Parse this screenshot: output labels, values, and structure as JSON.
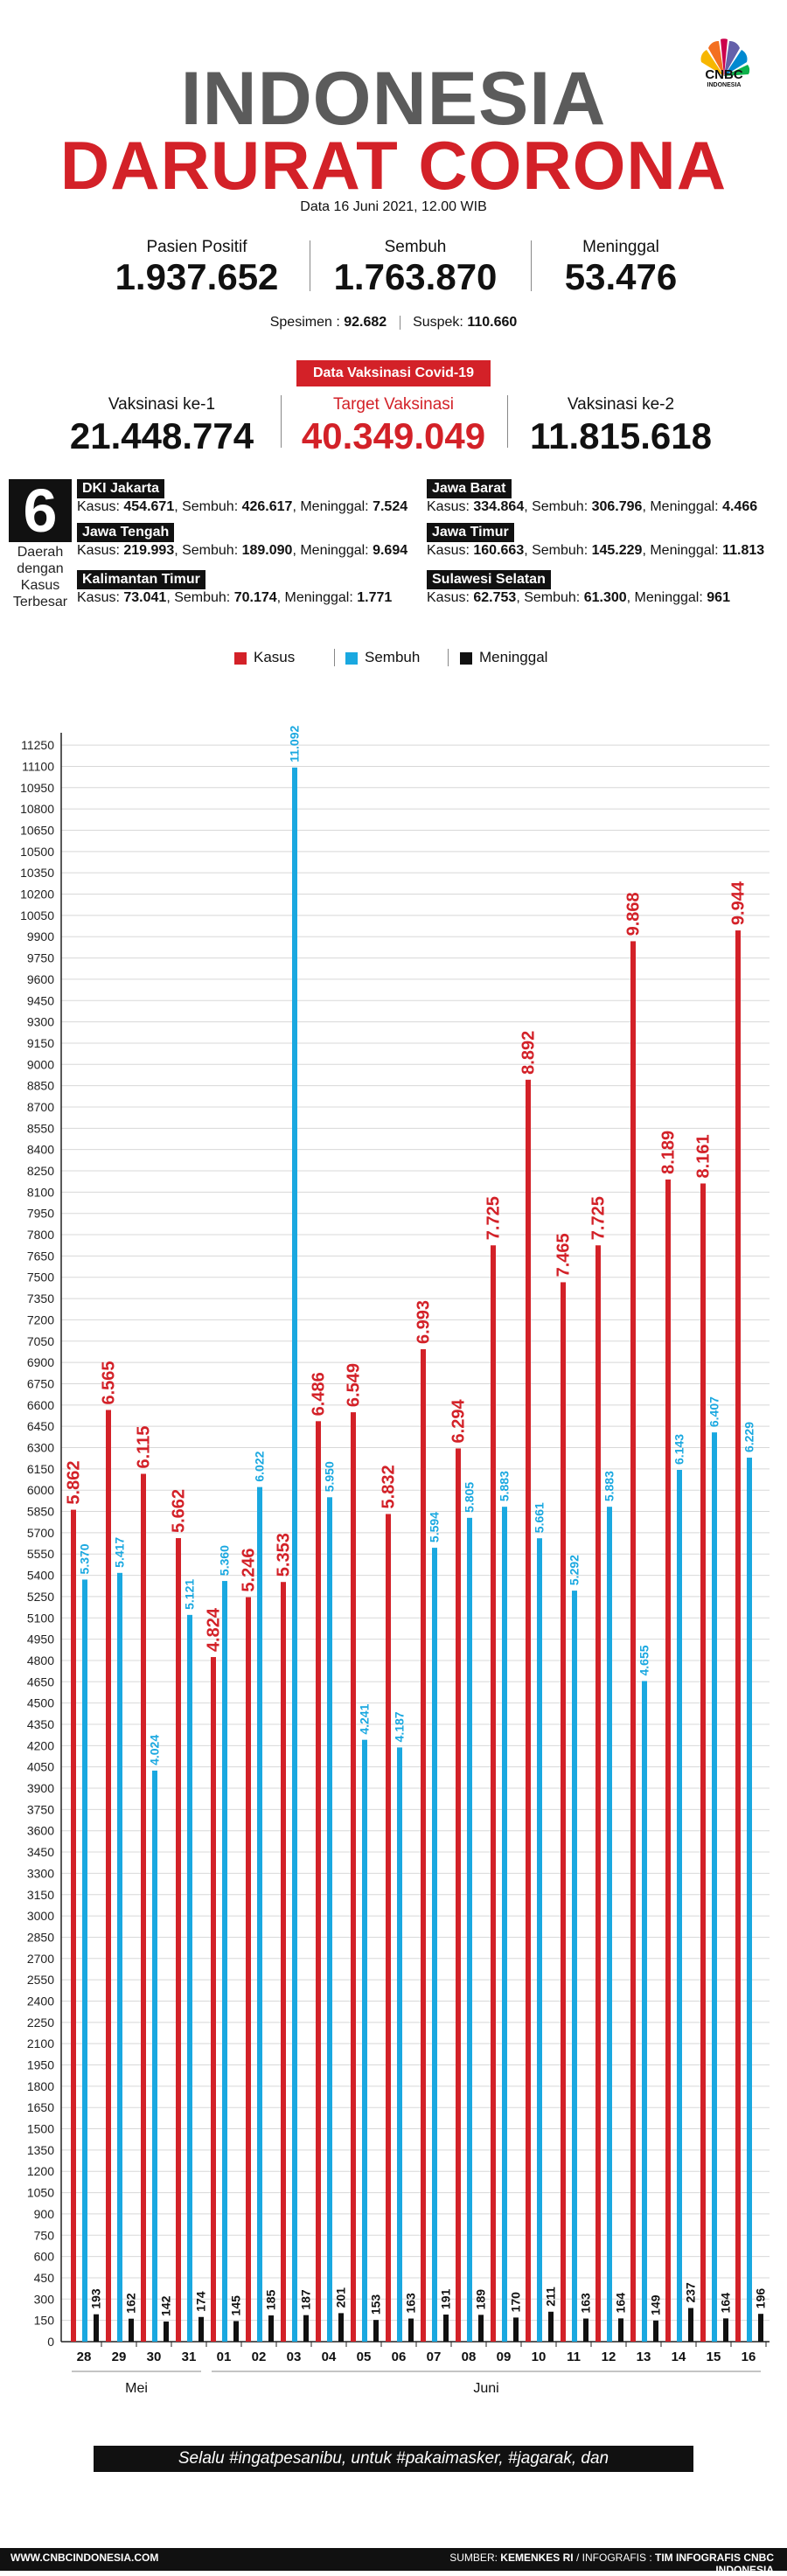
{
  "header": {
    "title_line1": "INDONESIA",
    "title_line2": "DARURAT CORONA",
    "logo_text": "CNBC",
    "logo_sub": "INDONESIA",
    "date": "Data 16 Juni 2021, 12.00 WIB"
  },
  "stats": {
    "positif_label": "Pasien Positif",
    "positif_value": "1.937.652",
    "sembuh_label": "Sembuh",
    "sembuh_value": "1.763.870",
    "meninggal_label": "Meninggal",
    "meninggal_value": "53.476",
    "spesimen_label": "Spesimen :",
    "spesimen_value": "92.682",
    "suspek_label": "Suspek:",
    "suspek_value": "110.660"
  },
  "vaccination": {
    "badge": "Data Vaksinasi Covid-19",
    "dose1_label": "Vaksinasi ke-1",
    "dose1_value": "21.448.774",
    "target_label": "Target Vaksinasi",
    "target_value": "40.349.049",
    "dose2_label": "Vaksinasi ke-2",
    "dose2_value": "11.815.618"
  },
  "regions": {
    "count": "6",
    "label": "Daerah dengan Kasus Terbesar",
    "items": [
      {
        "name": "DKI Jakarta",
        "kasus_label": "Kasus:",
        "kasus": "454.671",
        "sembuh_label": "Sembuh:",
        "sembuh": "426.617",
        "meninggal_label": "Meninggal:",
        "meninggal": "7.524"
      },
      {
        "name": "Jawa Barat",
        "kasus_label": "Kasus:",
        "kasus": "334.864",
        "sembuh_label": "Sembuh:",
        "sembuh": "306.796",
        "meninggal_label": "Meninggal:",
        "meninggal": "4.466"
      },
      {
        "name": "Jawa Tengah",
        "kasus_label": "Kasus:",
        "kasus": "219.993",
        "sembuh_label": "Sembuh:",
        "sembuh": "189.090",
        "meninggal_label": "Meninggal:",
        "meninggal": "9.694"
      },
      {
        "name": "Jawa Timur",
        "kasus_label": "Kasus:",
        "kasus": "160.663",
        "sembuh_label": "Sembuh:",
        "sembuh": "145.229",
        "meninggal_label": "Meninggal:",
        "meninggal": "11.813"
      },
      {
        "name": "Kalimantan Timur",
        "kasus_label": "Kasus:",
        "kasus": "73.041",
        "sembuh_label": "Sembuh:",
        "sembuh": "70.174",
        "meninggal_label": "Meninggal:",
        "meninggal": "1.771"
      },
      {
        "name": "Sulawesi Selatan",
        "kasus_label": "Kasus:",
        "kasus": "62.753",
        "sembuh_label": "Sembuh:",
        "sembuh": "61.300",
        "meninggal_label": "Meninggal:",
        "meninggal": "961"
      }
    ]
  },
  "chart_data": {
    "type": "bar",
    "categories": [
      "28",
      "29",
      "30",
      "31",
      "01",
      "02",
      "03",
      "04",
      "05",
      "06",
      "07",
      "08",
      "09",
      "10",
      "11",
      "12",
      "13",
      "14",
      "15",
      "16"
    ],
    "month_labels": [
      "Mei",
      "Juni"
    ],
    "series": [
      {
        "name": "Kasus",
        "color": "#d32128",
        "values": [
          5862,
          6565,
          6115,
          5662,
          4824,
          5246,
          5353,
          6486,
          6549,
          5832,
          6993,
          6294,
          7725,
          8892,
          7465,
          7725,
          9868,
          8189,
          8161,
          9944
        ],
        "labels": [
          "5.862",
          "6.565",
          "6.115",
          "5.662",
          "4.824",
          "5.246",
          "5.353",
          "6.486",
          "6.549",
          "5.832",
          "6.993",
          "6.294",
          "7.725",
          "8.892",
          "7.465",
          "7.725",
          "9.868",
          "8.189",
          "8.161",
          "9.944"
        ]
      },
      {
        "name": "Sembuh",
        "color": "#1aa8e0",
        "values": [
          5370,
          5417,
          4024,
          5121,
          5360,
          6022,
          11092,
          5950,
          4241,
          4187,
          5594,
          5805,
          5883,
          5661,
          5292,
          5883,
          4655,
          6143,
          6407,
          6229
        ],
        "labels": [
          "5.370",
          "5.417",
          "4.024",
          "5.121",
          "5.360",
          "6.022",
          "11.092",
          "5.950",
          "4.241",
          "4.187",
          "5.594",
          "5.805",
          "5.883",
          "5.661",
          "5.292",
          "5.883",
          "4.655",
          "6.143",
          "6.407",
          "6.229"
        ]
      },
      {
        "name": "Meninggal",
        "color": "#111111",
        "values": [
          193,
          162,
          142,
          174,
          145,
          185,
          187,
          201,
          153,
          163,
          191,
          189,
          170,
          211,
          163,
          164,
          149,
          237,
          164,
          196
        ],
        "labels": [
          "193",
          "162",
          "142",
          "174",
          "145",
          "185",
          "187",
          "201",
          "153",
          "163",
          "191",
          "189",
          "170",
          "211",
          "163",
          "164",
          "149",
          "237",
          "164",
          "196"
        ]
      }
    ],
    "ylim": [
      0,
      11300
    ],
    "ytick_step": 150,
    "grid": true,
    "legend": "top-center"
  },
  "slogan": "Selalu #ingatpesanibu, untuk #pakaimasker, #jagarak, dan #cucitanganpakaisabun",
  "footer": {
    "site": "WWW.CNBCINDONESIA.COM",
    "source_label": "SUMBER:",
    "source": "KEMENKES RI",
    "infografis_label": "/ INFOGRAFIS :",
    "infografis": "TIM INFOGRAFIS CNBC INDONESIA"
  }
}
